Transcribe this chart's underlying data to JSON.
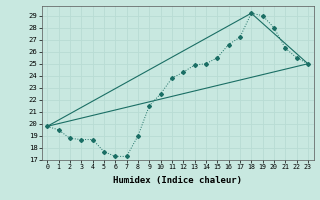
{
  "xlabel": "Humidex (Indice chaleur)",
  "bg_color": "#c8e8e0",
  "grid_color": "#b8dcd4",
  "line_color": "#1a6e64",
  "xlim": [
    -0.5,
    23.5
  ],
  "ylim": [
    17,
    29.8
  ],
  "yticks": [
    17,
    18,
    19,
    20,
    21,
    22,
    23,
    24,
    25,
    26,
    27,
    28,
    29
  ],
  "xticks": [
    0,
    1,
    2,
    3,
    4,
    5,
    6,
    7,
    8,
    9,
    10,
    11,
    12,
    13,
    14,
    15,
    16,
    17,
    18,
    19,
    20,
    21,
    22,
    23
  ],
  "curve_x": [
    0,
    1,
    2,
    3,
    4,
    5,
    6,
    7,
    8,
    9,
    10,
    11,
    12,
    13,
    14,
    15,
    16,
    17,
    18,
    19,
    20,
    21,
    22,
    23
  ],
  "curve_y": [
    19.8,
    19.5,
    18.8,
    18.7,
    18.7,
    17.7,
    17.3,
    17.3,
    19.0,
    21.5,
    22.5,
    23.8,
    24.3,
    24.9,
    25.0,
    25.5,
    26.6,
    27.2,
    29.2,
    29.0,
    28.0,
    26.3,
    25.5,
    25.0
  ],
  "line1_x": [
    0,
    23
  ],
  "line1_y": [
    19.8,
    25.0
  ],
  "line2_x": [
    0,
    18,
    23
  ],
  "line2_y": [
    19.8,
    29.2,
    25.0
  ]
}
